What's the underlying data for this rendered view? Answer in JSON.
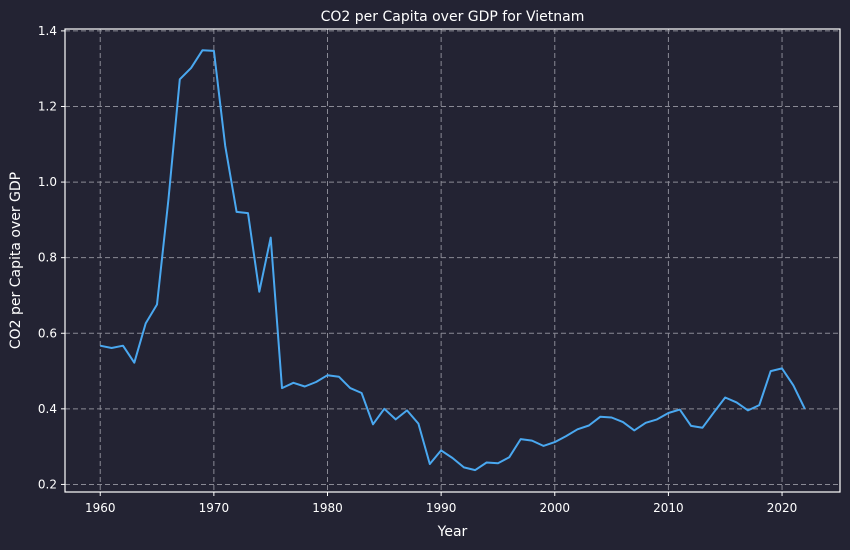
{
  "chart_data": {
    "type": "line",
    "title": "CO2 per Capita over GDP for Vietnam",
    "xlabel": "Year",
    "ylabel": "CO2 per Capita over GDP",
    "xlim": [
      1956.9,
      2025.1
    ],
    "ylim": [
      0.18,
      1.405
    ],
    "x_ticks": [
      1960,
      1970,
      1980,
      1990,
      2000,
      2010,
      2020
    ],
    "y_ticks": [
      0.2,
      0.4,
      0.6,
      0.8,
      1.0,
      1.2,
      1.4
    ],
    "y_tick_labels": [
      "0.2",
      "0.4",
      "0.6",
      "0.8",
      "1.0",
      "1.2",
      "1.4"
    ],
    "grid": true,
    "colors": {
      "background": "#232333",
      "line": "#4aa8f0",
      "grid": "#8a8a95",
      "text": "#ffffff"
    },
    "series": [
      {
        "x": [
          1960,
          1961,
          1962,
          1963,
          1964,
          1965,
          1966,
          1967,
          1968,
          1969,
          1970,
          1971,
          1972,
          1973,
          1974,
          1975,
          1976,
          1977,
          1978,
          1979,
          1980,
          1981,
          1982,
          1983,
          1984,
          1985,
          1986,
          1987,
          1988,
          1989,
          1990,
          1991,
          1992,
          1993,
          1994,
          1995,
          1996,
          1997,
          1998,
          1999,
          2000,
          2001,
          2002,
          2003,
          2004,
          2005,
          2006,
          2007,
          2008,
          2009,
          2010,
          2011,
          2012,
          2013,
          2014,
          2015,
          2016,
          2017,
          2018,
          2019,
          2020,
          2021,
          2022
        ],
        "values": [
          0.567,
          0.561,
          0.567,
          0.522,
          0.626,
          0.676,
          0.953,
          1.272,
          1.302,
          1.349,
          1.347,
          1.096,
          0.921,
          0.918,
          0.71,
          0.853,
          0.455,
          0.469,
          0.459,
          0.471,
          0.489,
          0.485,
          0.455,
          0.442,
          0.359,
          0.4,
          0.372,
          0.396,
          0.361,
          0.254,
          0.29,
          0.27,
          0.245,
          0.238,
          0.258,
          0.256,
          0.272,
          0.32,
          0.316,
          0.302,
          0.312,
          0.328,
          0.346,
          0.356,
          0.379,
          0.377,
          0.365,
          0.343,
          0.363,
          0.372,
          0.389,
          0.398,
          0.355,
          0.35,
          0.391,
          0.43,
          0.417,
          0.396,
          0.41,
          0.5,
          0.507,
          0.462,
          0.4
        ]
      }
    ]
  }
}
